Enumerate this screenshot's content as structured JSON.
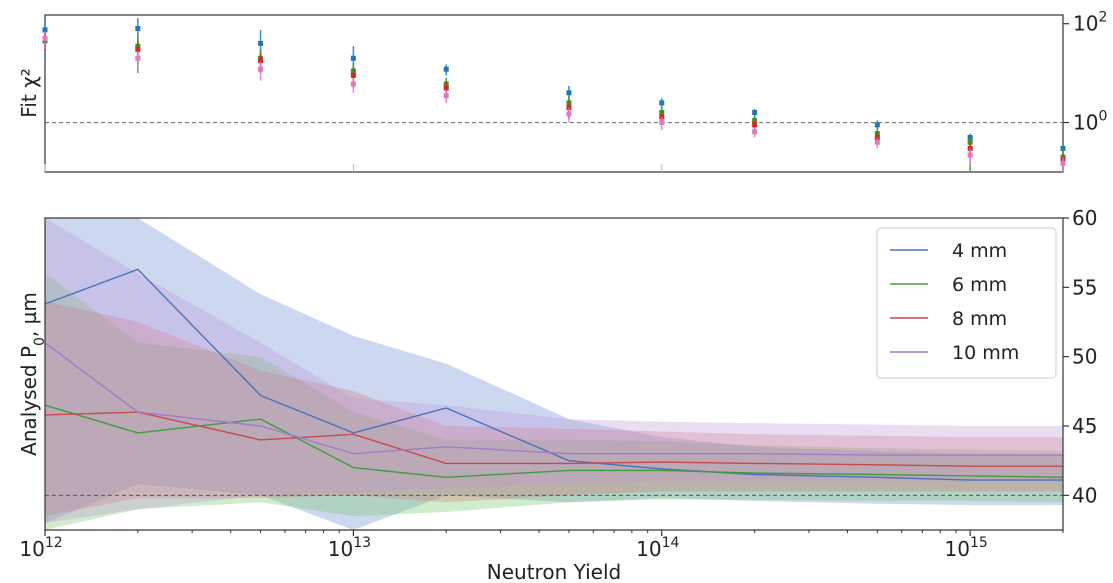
{
  "chart_data": [
    {
      "type": "scatter",
      "panel": "top",
      "ylabel": "Fit χ²",
      "yscale": "log",
      "xscale": "log",
      "ylim": [
        0.1,
        150
      ],
      "ytick_labels": [
        {
          "value": 1,
          "base": "10",
          "exp": "0"
        },
        {
          "value": 100,
          "base": "10",
          "exp": "2"
        }
      ],
      "reference_line": 1,
      "x": [
        1000000000000.0,
        2000000000000.0,
        5000000000000.0,
        10000000000000.0,
        20000000000000.0,
        50000000000000.0,
        100000000000000.0,
        200000000000000.0,
        500000000000000.0,
        1000000000000000.0,
        2000000000000000.0
      ],
      "series": [
        {
          "color": "#1f77b4",
          "values": [
            75,
            80,
            40,
            20,
            12,
            4,
            2.5,
            1.6,
            0.9,
            0.5,
            0.3
          ],
          "err_low": [
            40,
            40,
            20,
            10,
            3,
            1.5,
            0.6,
            0.4,
            0.2,
            0.2,
            0.1
          ],
          "err_high": [
            40,
            50,
            35,
            15,
            3,
            1.5,
            0.6,
            0.3,
            0.2,
            0.1,
            0.1
          ]
        },
        {
          "color": "#2ca02c",
          "values": [
            45,
            35,
            20,
            11,
            6,
            2.5,
            1.6,
            1.1,
            0.6,
            0.4,
            0.2
          ],
          "err_low": [
            20,
            25,
            10,
            5,
            2,
            1,
            0.5,
            0.3,
            0.2,
            0.3,
            0.1
          ],
          "err_high": [
            20,
            25,
            10,
            5,
            2,
            1,
            0.5,
            0.3,
            0.2,
            0.1,
            0.1
          ]
        },
        {
          "color": "#d62728",
          "values": [
            48,
            30,
            18,
            9,
            5,
            2,
            1.3,
            0.9,
            0.5,
            0.3,
            0.18
          ],
          "err_low": [
            20,
            15,
            8,
            4,
            2,
            0.8,
            0.4,
            0.3,
            0.15,
            0.1,
            0.05
          ],
          "err_high": [
            20,
            15,
            8,
            4,
            2,
            0.8,
            0.4,
            0.3,
            0.15,
            0.1,
            0.05
          ]
        },
        {
          "color": "#e377c2",
          "values": [
            50,
            20,
            12,
            6,
            3.5,
            1.5,
            1.0,
            0.65,
            0.4,
            0.22,
            0.15
          ],
          "err_low": [
            20,
            8,
            5,
            2,
            1,
            0.5,
            0.3,
            0.15,
            0.1,
            0.08,
            0.05
          ],
          "err_high": [
            20,
            8,
            5,
            2,
            1,
            0.5,
            0.3,
            0.15,
            0.1,
            0.08,
            0.05
          ]
        }
      ]
    },
    {
      "type": "line",
      "panel": "bottom",
      "xlabel": "Neutron Yield",
      "ylabel": "Analysed P",
      "ylabel_sub": "0",
      "ylabel_unit": ", µm",
      "xscale": "log",
      "xlim": [
        1000000000000.0,
        2000000000000000.0
      ],
      "ylim": [
        37.5,
        60
      ],
      "yticks": [
        40,
        45,
        50,
        55,
        60
      ],
      "xtick_labels": [
        {
          "value": 1000000000000.0,
          "base": "10",
          "exp": "12"
        },
        {
          "value": 10000000000000.0,
          "base": "10",
          "exp": "13"
        },
        {
          "value": 100000000000000.0,
          "base": "10",
          "exp": "14"
        },
        {
          "value": 1000000000000000.0,
          "base": "10",
          "exp": "15"
        }
      ],
      "reference_line": 40,
      "legend_position": "upper right",
      "x": [
        1000000000000.0,
        2000000000000.0,
        5000000000000.0,
        10000000000000.0,
        20000000000000.0,
        50000000000000.0,
        100000000000000.0,
        200000000000000.0,
        500000000000000.0,
        1000000000000000.0,
        2000000000000000.0
      ],
      "series": [
        {
          "name": "4 mm",
          "color": "#4a72b8",
          "fill": "rgba(120,150,215,0.38)",
          "values": [
            53.8,
            56.3,
            47.2,
            44.5,
            46.3,
            42.5,
            41.9,
            41.5,
            41.3,
            41.1,
            41.1
          ],
          "lower": [
            38.0,
            40.8,
            40.0,
            37.5,
            40.0,
            39.5,
            39.8,
            39.6,
            39.4,
            39.3,
            39.3
          ],
          "upper": [
            68.0,
            66.0,
            54.5,
            51.5,
            49.5,
            45.5,
            44.2,
            43.5,
            43.2,
            43.0,
            42.9
          ]
        },
        {
          "name": "6 mm",
          "color": "#3e9e3e",
          "fill": "rgba(120,200,110,0.35)",
          "values": [
            46.5,
            44.5,
            45.5,
            42.0,
            41.3,
            41.8,
            41.8,
            41.6,
            41.5,
            41.4,
            41.3
          ],
          "lower": [
            37.5,
            39.0,
            39.5,
            38.5,
            38.8,
            39.5,
            39.7,
            39.7,
            39.6,
            39.6,
            39.5
          ],
          "upper": [
            56.0,
            51.0,
            50.0,
            46.0,
            44.0,
            44.0,
            43.9,
            43.6,
            43.4,
            43.3,
            43.2
          ]
        },
        {
          "name": "8 mm",
          "color": "#c84a4a",
          "fill": "rgba(220,110,110,0.30)",
          "values": [
            45.8,
            46.0,
            44.0,
            44.4,
            42.3,
            42.3,
            42.4,
            42.3,
            42.2,
            42.1,
            42.1
          ],
          "lower": [
            38.5,
            39.8,
            39.8,
            40.0,
            39.5,
            40.0,
            40.3,
            40.3,
            40.3,
            40.3,
            40.3
          ],
          "upper": [
            54.0,
            52.5,
            49.0,
            47.5,
            45.0,
            44.8,
            44.6,
            44.4,
            44.3,
            44.2,
            44.2
          ]
        },
        {
          "name": "10 mm",
          "color": "#9e7dc8",
          "fill": "rgba(190,150,215,0.32)",
          "values": [
            51.0,
            46.0,
            45.0,
            43.0,
            43.5,
            43.0,
            43.0,
            43.0,
            42.9,
            42.9,
            42.9
          ],
          "lower": [
            38.0,
            39.0,
            40.0,
            40.2,
            40.5,
            40.8,
            41.0,
            41.0,
            41.0,
            41.0,
            41.0
          ],
          "upper": [
            62.0,
            56.0,
            51.0,
            47.0,
            46.5,
            45.5,
            45.3,
            45.2,
            45.1,
            45.0,
            45.0
          ]
        }
      ]
    }
  ]
}
